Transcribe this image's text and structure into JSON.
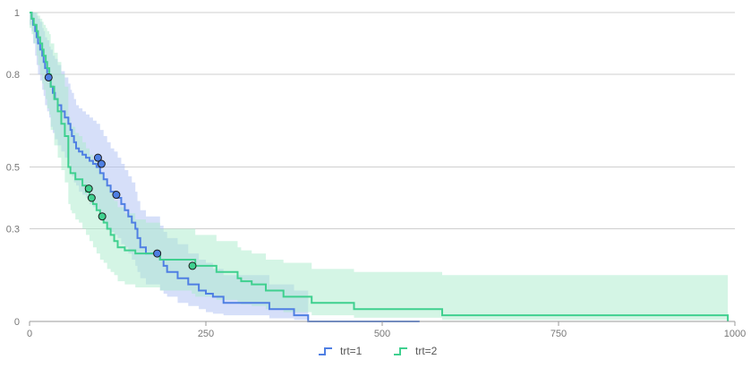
{
  "chart_data": {
    "type": "line",
    "step": true,
    "title": "",
    "xlabel": "",
    "ylabel": "",
    "xlim": [
      0,
      1000
    ],
    "ylim": [
      0,
      1
    ],
    "x_ticks": [
      0,
      250,
      500,
      750,
      1000
    ],
    "x_tick_labels": [
      "0",
      "250",
      "500",
      "750",
      "1000"
    ],
    "y_ticks": [
      0,
      0.3,
      0.5,
      0.8,
      1
    ],
    "y_tick_labels": [
      "0",
      "0.3",
      "0.5",
      "0.8",
      "1"
    ],
    "grid": "horizontal",
    "legend_position": "bottom-center",
    "series": [
      {
        "name": "trt=1",
        "color": "#4f7fe3",
        "band_color": "#aebff3",
        "x": [
          0,
          3,
          5,
          8,
          10,
          12,
          15,
          18,
          20,
          22,
          25,
          28,
          30,
          33,
          36,
          40,
          45,
          50,
          55,
          58,
          60,
          63,
          66,
          70,
          75,
          80,
          85,
          90,
          95,
          100,
          105,
          110,
          115,
          120,
          125,
          130,
          135,
          140,
          145,
          150,
          153,
          157,
          165,
          185,
          190,
          195,
          210,
          225,
          240,
          250,
          260,
          275,
          315,
          340,
          360,
          375,
          390,
          395,
          410,
          470,
          553
        ],
        "y": [
          1.0,
          0.98,
          0.96,
          0.94,
          0.92,
          0.9,
          0.88,
          0.86,
          0.84,
          0.82,
          0.8,
          0.78,
          0.76,
          0.74,
          0.72,
          0.7,
          0.68,
          0.66,
          0.64,
          0.62,
          0.6,
          0.58,
          0.56,
          0.55,
          0.54,
          0.53,
          0.52,
          0.51,
          0.5,
          0.48,
          0.46,
          0.44,
          0.42,
          0.41,
          0.4,
          0.38,
          0.36,
          0.34,
          0.32,
          0.3,
          0.27,
          0.24,
          0.22,
          0.2,
          0.18,
          0.16,
          0.14,
          0.12,
          0.1,
          0.09,
          0.08,
          0.06,
          0.06,
          0.04,
          0.04,
          0.02,
          0.02,
          0.0,
          0.0,
          0.0,
          0.0
        ],
        "ci_lower": [
          0.96,
          0.94,
          0.9,
          0.86,
          0.83,
          0.8,
          0.78,
          0.75,
          0.73,
          0.7,
          0.68,
          0.66,
          0.63,
          0.61,
          0.59,
          0.57,
          0.55,
          0.53,
          0.51,
          0.49,
          0.47,
          0.45,
          0.44,
          0.42,
          0.41,
          0.4,
          0.38,
          0.37,
          0.36,
          0.34,
          0.32,
          0.3,
          0.29,
          0.28,
          0.27,
          0.25,
          0.24,
          0.22,
          0.2,
          0.18,
          0.16,
          0.14,
          0.12,
          0.1,
          0.09,
          0.08,
          0.06,
          0.05,
          0.04,
          0.03,
          0.025,
          0.02,
          0.02,
          0.01,
          0.01,
          0.005,
          0.005,
          0.0,
          0.0,
          0.0,
          0.0
        ],
        "ci_upper": [
          1.0,
          1.0,
          1.0,
          1.0,
          0.99,
          0.98,
          0.97,
          0.95,
          0.94,
          0.92,
          0.91,
          0.89,
          0.88,
          0.86,
          0.85,
          0.83,
          0.81,
          0.79,
          0.77,
          0.75,
          0.74,
          0.72,
          0.7,
          0.69,
          0.68,
          0.67,
          0.66,
          0.65,
          0.64,
          0.62,
          0.6,
          0.58,
          0.56,
          0.55,
          0.53,
          0.51,
          0.49,
          0.47,
          0.45,
          0.42,
          0.39,
          0.36,
          0.34,
          0.31,
          0.29,
          0.27,
          0.25,
          0.22,
          0.2,
          0.19,
          0.17,
          0.15,
          0.15,
          0.12,
          0.12,
          0.1,
          0.1,
          0.0,
          0.0,
          0.0,
          0.0
        ],
        "markers": [
          {
            "x": 27,
            "y": 0.79
          },
          {
            "x": 97,
            "y": 0.53
          },
          {
            "x": 102,
            "y": 0.51
          },
          {
            "x": 123,
            "y": 0.41
          },
          {
            "x": 181,
            "y": 0.22
          }
        ]
      },
      {
        "name": "trt=2",
        "color": "#3fd08f",
        "band_color": "#a9ebcc",
        "x": [
          0,
          3,
          6,
          10,
          12,
          15,
          18,
          20,
          23,
          25,
          28,
          30,
          35,
          40,
          45,
          50,
          55,
          58,
          60,
          65,
          70,
          75,
          80,
          85,
          90,
          95,
          100,
          105,
          110,
          115,
          120,
          125,
          135,
          140,
          150,
          165,
          185,
          230,
          235,
          265,
          295,
          300,
          315,
          335,
          360,
          400,
          460,
          585,
          990
        ],
        "y": [
          1.0,
          0.98,
          0.96,
          0.94,
          0.92,
          0.9,
          0.88,
          0.86,
          0.84,
          0.82,
          0.8,
          0.76,
          0.72,
          0.68,
          0.64,
          0.6,
          0.5,
          0.48,
          0.48,
          0.46,
          0.46,
          0.44,
          0.42,
          0.4,
          0.38,
          0.36,
          0.34,
          0.32,
          0.3,
          0.28,
          0.26,
          0.24,
          0.23,
          0.23,
          0.22,
          0.22,
          0.2,
          0.2,
          0.18,
          0.16,
          0.14,
          0.13,
          0.12,
          0.1,
          0.08,
          0.06,
          0.04,
          0.02,
          0.0
        ],
        "ci_lower": [
          0.95,
          0.93,
          0.9,
          0.86,
          0.83,
          0.8,
          0.77,
          0.75,
          0.72,
          0.69,
          0.67,
          0.62,
          0.57,
          0.53,
          0.49,
          0.45,
          0.38,
          0.36,
          0.35,
          0.33,
          0.32,
          0.3,
          0.28,
          0.26,
          0.24,
          0.22,
          0.2,
          0.19,
          0.17,
          0.16,
          0.15,
          0.13,
          0.12,
          0.12,
          0.11,
          0.11,
          0.1,
          0.09,
          0.08,
          0.07,
          0.06,
          0.055,
          0.05,
          0.04,
          0.03,
          0.02,
          0.012,
          0.005,
          0.0
        ],
        "ci_upper": [
          1.0,
          1.0,
          1.0,
          1.0,
          0.99,
          0.98,
          0.97,
          0.96,
          0.95,
          0.94,
          0.93,
          0.9,
          0.87,
          0.84,
          0.8,
          0.76,
          0.66,
          0.64,
          0.63,
          0.61,
          0.6,
          0.58,
          0.56,
          0.54,
          0.52,
          0.5,
          0.48,
          0.46,
          0.44,
          0.42,
          0.39,
          0.37,
          0.35,
          0.35,
          0.33,
          0.32,
          0.3,
          0.3,
          0.28,
          0.26,
          0.24,
          0.23,
          0.22,
          0.2,
          0.19,
          0.17,
          0.16,
          0.15,
          0.14
        ],
        "markers": [
          {
            "x": 84,
            "y": 0.43
          },
          {
            "x": 88,
            "y": 0.4
          },
          {
            "x": 103,
            "y": 0.34
          },
          {
            "x": 231,
            "y": 0.18
          }
        ]
      }
    ]
  }
}
